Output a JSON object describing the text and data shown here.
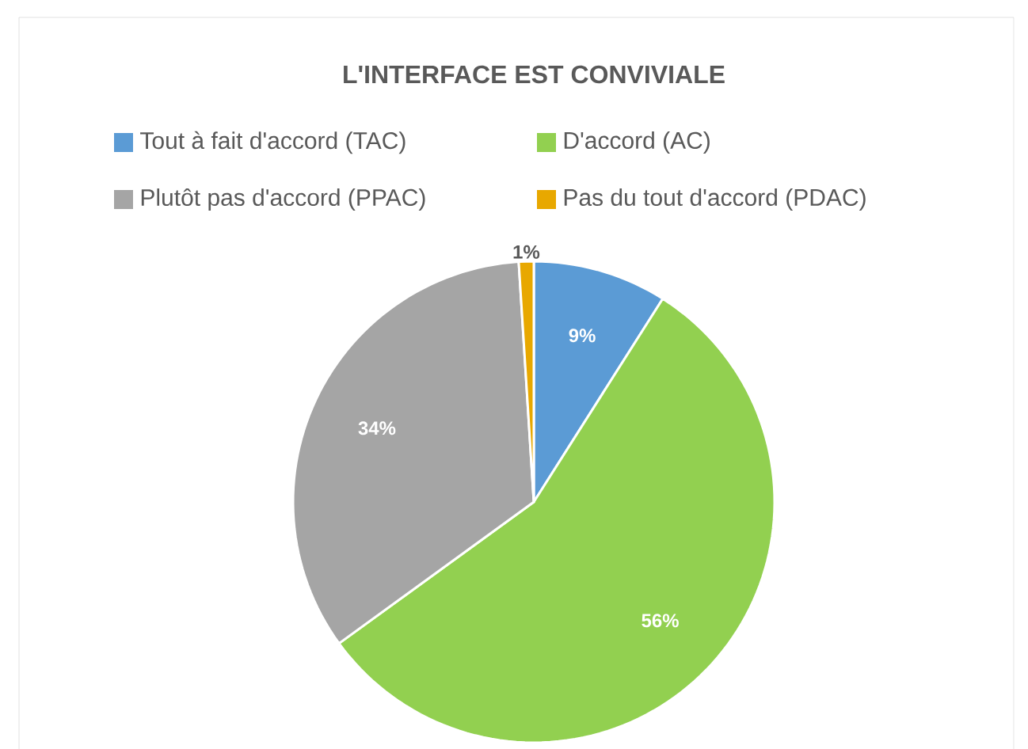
{
  "chart_data": {
    "type": "pie",
    "title": "L'INTERFACE EST CONVIVIALE",
    "categories": [
      "Tout à fait d'accord (TAC)",
      "D'accord (AC)",
      "Plutôt pas d'accord (PPAC)",
      "Pas du tout d'accord (PDAC)"
    ],
    "values": [
      9,
      56,
      34,
      1
    ],
    "value_labels": [
      "9%",
      "56%",
      "34%",
      "1%"
    ],
    "colors": [
      "#5b9bd5",
      "#92d050",
      "#a5a5a5",
      "#e8a800"
    ],
    "legend": "top"
  }
}
